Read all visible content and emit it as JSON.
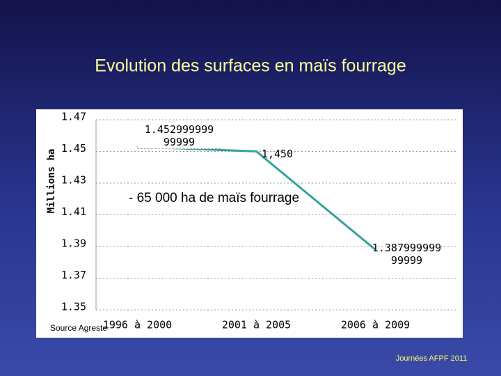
{
  "chart_data": {
    "type": "line",
    "title": "Evolution des surfaces en maïs fourrage",
    "y_label": "Millions ha",
    "annotation": "- 65 000 ha de maïs fourrage",
    "source": "Source Agreste",
    "footer": "Journées AFPF 2011",
    "categories": [
      "1996 à 2000",
      "2001 à 2005",
      "2006 à 2009"
    ],
    "values": [
      1.453,
      1.45,
      1.388
    ],
    "value_labels": [
      "1.452999999 99999",
      "1,450",
      "1.387999999 99999"
    ],
    "color": "#33a39a",
    "ylim": [
      1.35,
      1.47
    ],
    "yticks": [
      1.35,
      1.37,
      1.39,
      1.41,
      1.43,
      1.45,
      1.47
    ],
    "grid": true
  }
}
